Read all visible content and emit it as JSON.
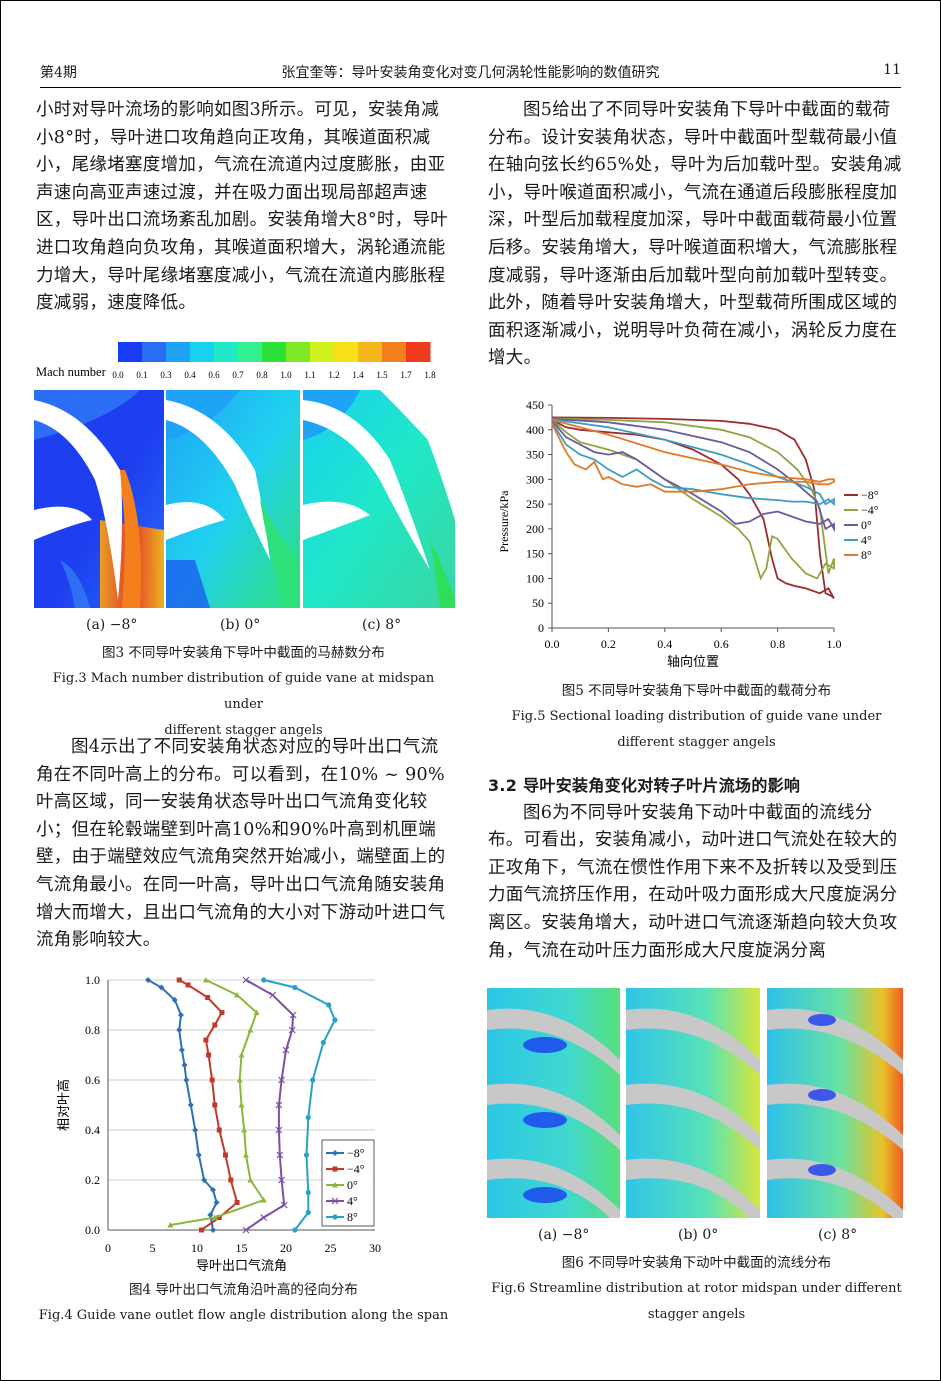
{
  "header": {
    "left": "第4期",
    "center": "张宜奎等：导叶安装角变化对变几何涡轮性能影响的数值研究",
    "right": "11"
  },
  "left_col": {
    "para1": "小时对导叶流场的影响如图3所示。可见，安装角减小8°时，导叶进口攻角趋向正攻角，其喉道面积减小，尾缘堵塞度增加，气流在流道内过度膨胀，由亚声速向高亚声速过渡，并在吸力面出现局部超声速区，导叶出口流场紊乱加剧。安装角增大8°时，导叶进口攻角趋向负攻角，其喉道面积增大，涡轮通流能力增大，导叶尾缘堵塞度减小，气流在流道内膨胀程度减弱，速度降低。",
    "para2": "图4示出了不同安装角状态对应的导叶出口气流角在不同叶高上的分布。可以看到，在10% ~ 90%叶高区域，同一安装角状态导叶出口气流角变化较小；但在轮毂端壁到叶高10%和90%叶高到机匣端壁，由于端壁效应气流角突然开始减小，端壁面上的气流角最小。在同一叶高，导叶出口气流角随安装角增大而增大，且出口气流角的大小对下游动叶进口气流角影响较大。"
  },
  "right_col": {
    "para1": "图5给出了不同导叶安装角下导叶中截面的载荷分布。设计安装角状态，导叶中截面叶型载荷最小值在轴向弦长约65%处，导叶为后加载叶型。安装角减小，导叶喉道面积减小，气流在通道后段膨胀程度加深，叶型后加载程度加深，导叶中截面载荷最小位置后移。安装角增大，导叶喉道面积增大，气流膨胀程度减弱，导叶逐渐由后加载叶型向前加载叶型转变。此外，随着导叶安装角增大，叶型载荷所围成区域的面积逐渐减小，说明导叶负荷在减小，涡轮反力度在增大。",
    "section_title": "3.2  导叶安装角变化对转子叶片流场的影响",
    "para2": "图6为不同导叶安装角下动叶中截面的流线分布。可看出，安装角减小，动叶进口气流处在较大的正攻角下，气流在惯性作用下来不及折转以及受到压力面气流挤压作用，在动叶吸力面形成大尺度旋涡分离区。安装角增大，动叶进口气流逐渐趋向较大负攻角，气流在动叶压力面形成大尺度旋涡分离"
  },
  "fig3": {
    "colorbar_label": "Mach number",
    "ticks": [
      "0.0",
      "0.1",
      "0.3",
      "0.4",
      "0.6",
      "0.7",
      "0.8",
      "1.0",
      "1.1",
      "1.2",
      "1.4",
      "1.5",
      "1.7",
      "1.8"
    ],
    "colors": [
      "#1a3cf0",
      "#2a6df5",
      "#1fa3f7",
      "#18d0f0",
      "#20e8c8",
      "#30f090",
      "#2ee03a",
      "#7ee828",
      "#d2f01e",
      "#f7e018",
      "#f5b81a",
      "#f3801c",
      "#ef3a1e"
    ],
    "sub_a": "(a)  −8°",
    "sub_b": "(b)  0°",
    "sub_c": "(c)  8°",
    "caption_cn": "图3  不同导叶安装角下导叶中截面的马赫数分布",
    "caption_en_1": "Fig.3  Mach number distribution of guide vane at midspan under",
    "caption_en_2": "different stagger angels"
  },
  "fig4": {
    "caption_cn": "图4  导叶出口气流角沿叶高的径向分布",
    "caption_en": "Fig.4  Guide vane outlet flow angle distribution along the span",
    "chart_data": {
      "type": "line",
      "xlabel": "导叶出口气流角",
      "ylabel": "相对叶高",
      "xlim": [
        0,
        30
      ],
      "ylim": [
        0,
        1.0
      ],
      "xticks": [
        "0",
        "5",
        "10",
        "15",
        "20",
        "25",
        "30"
      ],
      "yticks": [
        "0.0",
        "0.2",
        "0.4",
        "0.6",
        "0.8",
        "1.0"
      ],
      "legend_position": "right",
      "series": [
        {
          "name": "−8°",
          "color": "#2f6fb5",
          "marker": "diamond",
          "points": [
            [
              11.8,
              0
            ],
            [
              11.5,
              0.06
            ],
            [
              12.2,
              0.11
            ],
            [
              11.8,
              0.16
            ],
            [
              10.8,
              0.2
            ],
            [
              10.2,
              0.3
            ],
            [
              9.8,
              0.4
            ],
            [
              9.3,
              0.5
            ],
            [
              8.8,
              0.6
            ],
            [
              8.6,
              0.66
            ],
            [
              8.3,
              0.72
            ],
            [
              8.0,
              0.8
            ],
            [
              8.2,
              0.86
            ],
            [
              7.5,
              0.92
            ],
            [
              6.0,
              0.97
            ],
            [
              4.5,
              1.0
            ]
          ]
        },
        {
          "name": "−4°",
          "color": "#c0392b",
          "marker": "square",
          "points": [
            [
              10.5,
              0.0
            ],
            [
              12.5,
              0.05
            ],
            [
              14.5,
              0.11
            ],
            [
              13.8,
              0.2
            ],
            [
              13.2,
              0.3
            ],
            [
              12.5,
              0.4
            ],
            [
              12.0,
              0.5
            ],
            [
              11.7,
              0.6
            ],
            [
              11.3,
              0.7
            ],
            [
              11.0,
              0.76
            ],
            [
              12.0,
              0.82
            ],
            [
              12.8,
              0.87
            ],
            [
              11.2,
              0.93
            ],
            [
              9.0,
              0.98
            ],
            [
              8.0,
              1.0
            ]
          ]
        },
        {
          "name": "0°",
          "color": "#8ab83a",
          "marker": "triangle",
          "points": [
            [
              7.0,
              0.02
            ],
            [
              12.0,
              0.05
            ],
            [
              17.5,
              0.12
            ],
            [
              16.0,
              0.2
            ],
            [
              15.5,
              0.3
            ],
            [
              15.3,
              0.4
            ],
            [
              15.0,
              0.5
            ],
            [
              14.8,
              0.6
            ],
            [
              15.0,
              0.7
            ],
            [
              16.0,
              0.8
            ],
            [
              16.7,
              0.87
            ],
            [
              14.5,
              0.94
            ],
            [
              11.0,
              1.0
            ]
          ]
        },
        {
          "name": "4°",
          "color": "#7d4fa1",
          "marker": "x",
          "points": [
            [
              15.5,
              0.0
            ],
            [
              17.5,
              0.05
            ],
            [
              19.8,
              0.1
            ],
            [
              19.5,
              0.2
            ],
            [
              19.3,
              0.3
            ],
            [
              19.2,
              0.4
            ],
            [
              19.2,
              0.5
            ],
            [
              19.5,
              0.6
            ],
            [
              20.0,
              0.72
            ],
            [
              20.7,
              0.8
            ],
            [
              20.8,
              0.86
            ],
            [
              18.5,
              0.94
            ],
            [
              15.5,
              1.0
            ]
          ]
        },
        {
          "name": "8°",
          "color": "#2aa0c7",
          "marker": "circle",
          "points": [
            [
              21.0,
              0.0
            ],
            [
              22.5,
              0.07
            ],
            [
              22.5,
              0.15
            ],
            [
              22.3,
              0.3
            ],
            [
              22.5,
              0.45
            ],
            [
              23.0,
              0.6
            ],
            [
              24.2,
              0.75
            ],
            [
              25.5,
              0.84
            ],
            [
              24.8,
              0.9
            ],
            [
              21.0,
              0.97
            ],
            [
              17.5,
              1.0
            ]
          ]
        }
      ]
    }
  },
  "fig5": {
    "caption_cn": "图5  不同导叶安装角下导叶中截面的载荷分布",
    "caption_en_1": "Fig.5  Sectional loading distribution of guide vane under",
    "caption_en_2": "different stagger angels",
    "chart_data": {
      "type": "line",
      "xlabel": "轴向位置",
      "ylabel": "Pressure/kPa",
      "xlim": [
        0,
        1.0
      ],
      "ylim": [
        0,
        450
      ],
      "xticks": [
        "0.0",
        "0.2",
        "0.4",
        "0.6",
        "0.8",
        "1.0"
      ],
      "yticks": [
        "0",
        "50",
        "100",
        "150",
        "200",
        "250",
        "300",
        "350",
        "400",
        "450"
      ],
      "legend_position": "right",
      "series": [
        {
          "name": "−8°",
          "color": "#9b2d30",
          "upper": [
            [
              0,
              425
            ],
            [
              0.2,
              424
            ],
            [
              0.4,
              422
            ],
            [
              0.6,
              418
            ],
            [
              0.7,
              412
            ],
            [
              0.8,
              400
            ],
            [
              0.86,
              380
            ],
            [
              0.9,
              340
            ],
            [
              0.93,
              280
            ],
            [
              0.95,
              150
            ],
            [
              0.97,
              70
            ],
            [
              0.99,
              65
            ],
            [
              1.0,
              60
            ]
          ],
          "lower": [
            [
              0,
              420
            ],
            [
              0.05,
              405
            ],
            [
              0.1,
              400
            ],
            [
              0.2,
              395
            ],
            [
              0.3,
              390
            ],
            [
              0.4,
              380
            ],
            [
              0.5,
              360
            ],
            [
              0.6,
              330
            ],
            [
              0.66,
              300
            ],
            [
              0.7,
              270
            ],
            [
              0.75,
              220
            ],
            [
              0.78,
              140
            ],
            [
              0.8,
              100
            ],
            [
              0.83,
              90
            ],
            [
              0.86,
              85
            ],
            [
              0.9,
              80
            ],
            [
              0.95,
              70
            ],
            [
              0.98,
              80
            ],
            [
              1.0,
              60
            ]
          ]
        },
        {
          "name": "−4°",
          "color": "#8ea63f",
          "upper": [
            [
              0,
              423
            ],
            [
              0.2,
              420
            ],
            [
              0.4,
              415
            ],
            [
              0.6,
              400
            ],
            [
              0.7,
              385
            ],
            [
              0.8,
              355
            ],
            [
              0.87,
              320
            ],
            [
              0.92,
              280
            ],
            [
              0.95,
              240
            ],
            [
              0.98,
              110
            ],
            [
              1.0,
              140
            ]
          ],
          "lower": [
            [
              0,
              420
            ],
            [
              0.05,
              395
            ],
            [
              0.1,
              375
            ],
            [
              0.2,
              360
            ],
            [
              0.3,
              340
            ],
            [
              0.4,
              300
            ],
            [
              0.5,
              260
            ],
            [
              0.6,
              225
            ],
            [
              0.66,
              200
            ],
            [
              0.7,
              175
            ],
            [
              0.74,
              100
            ],
            [
              0.76,
              120
            ],
            [
              0.78,
              185
            ],
            [
              0.8,
              180
            ],
            [
              0.85,
              140
            ],
            [
              0.9,
              110
            ],
            [
              0.94,
              100
            ],
            [
              0.97,
              130
            ],
            [
              1.0,
              120
            ]
          ]
        },
        {
          "name": "0°",
          "color": "#6a5a9e",
          "upper": [
            [
              0,
              422
            ],
            [
              0.2,
              415
            ],
            [
              0.4,
              400
            ],
            [
              0.6,
              375
            ],
            [
              0.7,
              355
            ],
            [
              0.8,
              320
            ],
            [
              0.88,
              285
            ],
            [
              0.94,
              255
            ],
            [
              0.97,
              200
            ],
            [
              1.0,
              210
            ]
          ],
          "lower": [
            [
              0,
              418
            ],
            [
              0.05,
              385
            ],
            [
              0.1,
              370
            ],
            [
              0.15,
              355
            ],
            [
              0.2,
              350
            ],
            [
              0.25,
              355
            ],
            [
              0.3,
              340
            ],
            [
              0.4,
              300
            ],
            [
              0.5,
              270
            ],
            [
              0.6,
              235
            ],
            [
              0.65,
              210
            ],
            [
              0.7,
              215
            ],
            [
              0.75,
              230
            ],
            [
              0.8,
              235
            ],
            [
              0.85,
              225
            ],
            [
              0.9,
              215
            ],
            [
              0.95,
              210
            ],
            [
              0.98,
              220
            ],
            [
              1.0,
              200
            ]
          ]
        },
        {
          "name": "4°",
          "color": "#3f9cc0",
          "upper": [
            [
              0,
              421
            ],
            [
              0.2,
              405
            ],
            [
              0.4,
              380
            ],
            [
              0.6,
              350
            ],
            [
              0.7,
              330
            ],
            [
              0.8,
              305
            ],
            [
              0.9,
              285
            ],
            [
              0.95,
              270
            ],
            [
              0.97,
              250
            ],
            [
              1.0,
              260
            ]
          ],
          "lower": [
            [
              0,
              415
            ],
            [
              0.05,
              370
            ],
            [
              0.1,
              350
            ],
            [
              0.15,
              340
            ],
            [
              0.2,
              320
            ],
            [
              0.25,
              305
            ],
            [
              0.3,
              320
            ],
            [
              0.35,
              300
            ],
            [
              0.4,
              285
            ],
            [
              0.5,
              280
            ],
            [
              0.6,
              270
            ],
            [
              0.7,
              262
            ],
            [
              0.8,
              258
            ],
            [
              0.85,
              255
            ],
            [
              0.9,
              255
            ],
            [
              0.95,
              250
            ],
            [
              0.98,
              260
            ],
            [
              1.0,
              250
            ]
          ]
        },
        {
          "name": "8°",
          "color": "#e07a2a",
          "upper": [
            [
              0,
              420
            ],
            [
              0.2,
              390
            ],
            [
              0.4,
              355
            ],
            [
              0.6,
              330
            ],
            [
              0.7,
              315
            ],
            [
              0.8,
              305
            ],
            [
              0.9,
              300
            ],
            [
              0.95,
              295
            ],
            [
              0.98,
              300
            ],
            [
              1.0,
              300
            ]
          ],
          "lower": [
            [
              0,
              412
            ],
            [
              0.05,
              355
            ],
            [
              0.08,
              330
            ],
            [
              0.12,
              320
            ],
            [
              0.15,
              335
            ],
            [
              0.18,
              300
            ],
            [
              0.2,
              305
            ],
            [
              0.25,
              290
            ],
            [
              0.3,
              285
            ],
            [
              0.35,
              290
            ],
            [
              0.4,
              275
            ],
            [
              0.5,
              275
            ],
            [
              0.6,
              280
            ],
            [
              0.7,
              290
            ],
            [
              0.8,
              295
            ],
            [
              0.9,
              295
            ],
            [
              0.95,
              290
            ],
            [
              0.98,
              290
            ],
            [
              1.0,
              295
            ]
          ]
        }
      ]
    }
  },
  "fig6": {
    "sub_a": "(a)  −8°",
    "sub_b": "(b)  0°",
    "sub_c": "(c)  8°",
    "caption_cn": "图6  不同导叶安装角下动叶中截面的流线分布",
    "caption_en_1": "Fig.6  Streamline distribution at rotor midspan under different",
    "caption_en_2": "stagger angels"
  }
}
